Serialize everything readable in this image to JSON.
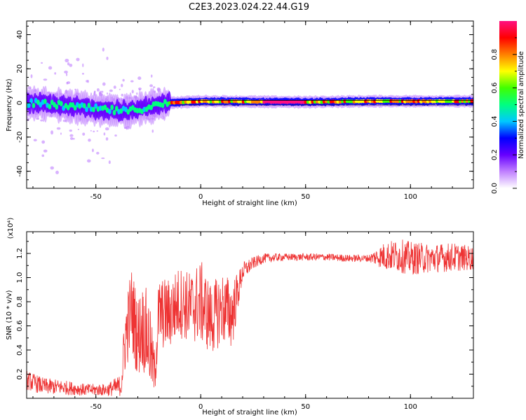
{
  "figure": {
    "title": "C2E3.2023.024.22.44.G19"
  },
  "chart_data": [
    {
      "type": "heatmap",
      "xlabel": "Height of straight line (km)",
      "ylabel": "Frequency (Hz)",
      "xlim": [
        -83,
        130
      ],
      "ylim": [
        -50,
        48
      ],
      "xticks": [
        -50,
        0,
        50,
        100
      ],
      "yticks": [
        -40,
        -20,
        0,
        20,
        40
      ],
      "colorbar": {
        "label": "Normalized spectral amplitude",
        "range": [
          0,
          1
        ],
        "ticks": [
          "0.0",
          "0.2",
          "0.4",
          "0.6",
          "0.8"
        ],
        "colors": [
          "#ffffff",
          "#c080ff",
          "#6600ff",
          "#0000ff",
          "#00c8ff",
          "#00ff80",
          "#40ff00",
          "#ffff00",
          "#ff8000",
          "#ff0000",
          "#ff1080"
        ]
      },
      "band_center_hz": [
        {
          "x": -83,
          "y": 0
        },
        {
          "x": -70,
          "y": -1
        },
        {
          "x": -55,
          "y": -3
        },
        {
          "x": -45,
          "y": -4
        },
        {
          "x": -35,
          "y": -5
        },
        {
          "x": -25,
          "y": -2.5
        },
        {
          "x": -15,
          "y": 0
        },
        {
          "x": 0,
          "y": 1
        },
        {
          "x": 50,
          "y": 0.5
        },
        {
          "x": 80,
          "y": 1
        },
        {
          "x": 100,
          "y": 1
        },
        {
          "x": 130,
          "y": 1
        }
      ],
      "reference_line_hz": 0
    },
    {
      "type": "line",
      "xlabel": "Height of straight line (km)",
      "ylabel": "SNR (10 * v/v)",
      "multiplier": "(x10⁴)",
      "xlim": [
        -83,
        130
      ],
      "ylim": [
        0.0,
        1.38
      ],
      "xticks": [
        -50,
        0,
        50,
        100
      ],
      "yticks": [
        "0.2",
        "0.4",
        "0.6",
        "0.8",
        "1.0",
        "1.2"
      ],
      "color": "#ee3333",
      "series": [
        {
          "x": [
            -83,
            -75,
            -65,
            -55,
            -45,
            -38,
            -36,
            -33,
            -30,
            -28,
            -25,
            -22,
            -20,
            -15,
            -10,
            -5,
            0,
            5,
            10,
            15,
            18,
            20,
            25,
            30,
            40,
            50,
            60,
            70,
            80,
            88,
            95,
            100,
            110,
            120,
            130
          ],
          "y": [
            0.15,
            0.1,
            0.09,
            0.07,
            0.07,
            0.1,
            0.5,
            0.75,
            0.5,
            0.6,
            0.5,
            0.2,
            0.7,
            0.7,
            0.8,
            0.75,
            0.8,
            0.65,
            0.75,
            0.7,
            0.9,
            1.05,
            1.12,
            1.16,
            1.17,
            1.17,
            1.17,
            1.16,
            1.16,
            1.18,
            1.18,
            1.16,
            1.16,
            1.17,
            1.16
          ],
          "noise_amplitude": [
            0.08,
            0.07,
            0.06,
            0.05,
            0.05,
            0.1,
            0.3,
            0.35,
            0.35,
            0.35,
            0.4,
            0.2,
            0.3,
            0.3,
            0.3,
            0.3,
            0.35,
            0.3,
            0.3,
            0.3,
            0.15,
            0.08,
            0.05,
            0.04,
            0.03,
            0.03,
            0.03,
            0.03,
            0.03,
            0.12,
            0.14,
            0.14,
            0.12,
            0.12,
            0.1
          ]
        }
      ]
    }
  ]
}
